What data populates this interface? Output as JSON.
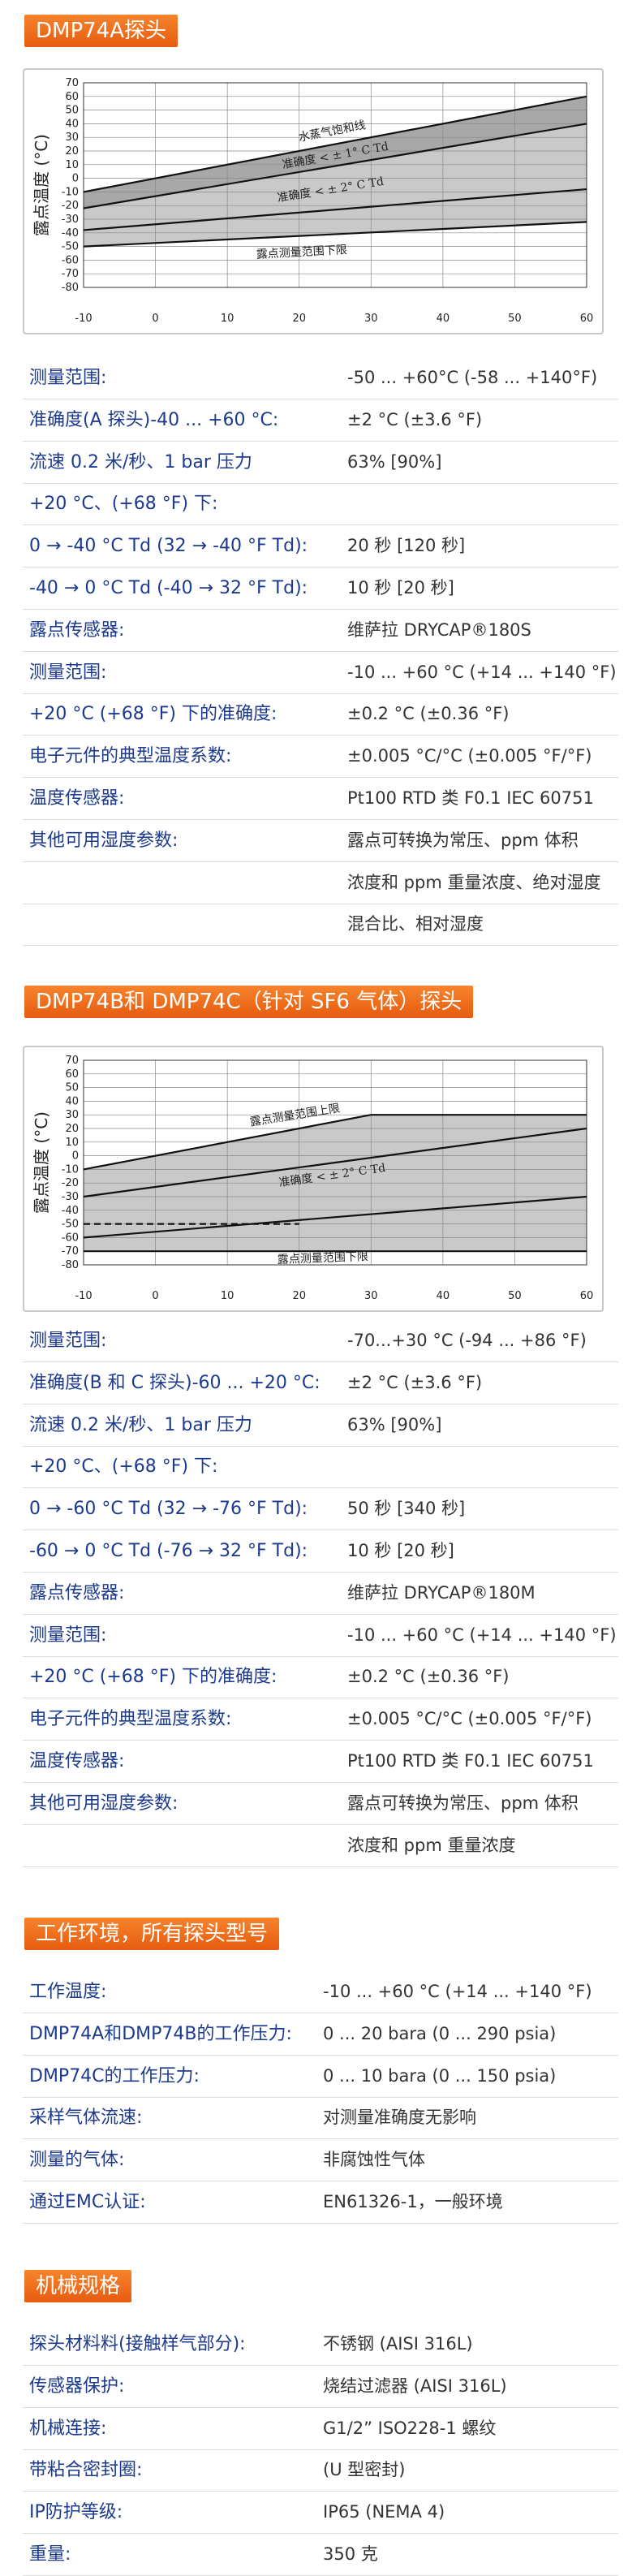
{
  "chart_data": [
    {
      "type": "line",
      "ylabel": "露点温度 (°C)",
      "xlim": [
        -10,
        60
      ],
      "ylim": [
        -80,
        70
      ],
      "xticks": [
        -10,
        0,
        10,
        20,
        30,
        40,
        50,
        60
      ],
      "yticks": [
        70,
        60,
        50,
        40,
        30,
        20,
        10,
        0,
        -10,
        -20,
        -30,
        -40,
        -50,
        -60,
        -70,
        -80
      ],
      "grid": true,
      "series": [
        {
          "x": [
            -10,
            60
          ],
          "values": [
            -10,
            60
          ]
        },
        {
          "x": [
            -10,
            60
          ],
          "values": [
            -22,
            40
          ]
        },
        {
          "x": [
            -10,
            60
          ],
          "values": [
            -38,
            -8
          ]
        },
        {
          "x": [
            -10,
            60
          ],
          "values": [
            -50,
            -32
          ]
        }
      ],
      "annotations": [
        "水蒸气饱和线",
        "准确度 < ± 1° C Td",
        "准确度 < ± 2° C Td",
        "露点测量范围下限"
      ]
    },
    {
      "type": "line",
      "ylabel": "露点温度 (°C)",
      "xlim": [
        -10,
        60
      ],
      "ylim": [
        -80,
        70
      ],
      "xticks": [
        -10,
        0,
        10,
        20,
        30,
        40,
        50,
        60
      ],
      "yticks": [
        70,
        60,
        50,
        40,
        30,
        20,
        10,
        0,
        -10,
        -20,
        -30,
        -40,
        -50,
        -60,
        -70,
        -80
      ],
      "grid": true,
      "series": [
        {
          "x": [
            -10,
            30,
            60
          ],
          "values": [
            -10,
            30,
            30
          ]
        },
        {
          "x": [
            -10,
            60
          ],
          "values": [
            -30,
            20
          ]
        },
        {
          "x": [
            -10,
            20
          ],
          "values": [
            -50,
            -50
          ],
          "dashed": true
        },
        {
          "x": [
            -10,
            60
          ],
          "values": [
            -60,
            -30
          ]
        },
        {
          "x": [
            -10,
            60
          ],
          "values": [
            -70,
            -70
          ]
        }
      ],
      "annotations": [
        "露点测量范围上限",
        "准确度 < ± 2° C Td",
        "露点测量范围下限"
      ]
    }
  ],
  "sections": [
    {
      "title": "DMP74A探头",
      "rows": [
        {
          "label": "测量范围:",
          "value": "-50 ... +60°C (-58 ... +140°F)"
        },
        {
          "label": "准确度(A 探头)-40 ... +60 °C:",
          "value": "±2 °C (±3.6 °F)"
        },
        {
          "label": "流速 0.2 米/秒、1 bar 压力",
          "value": "63% [90%]"
        },
        {
          "label": "+20 °C、(+68 °F) 下:"
        },
        {
          "label": "0 → -40 °C Td (32 → -40 °F Td):",
          "value": "20 秒 [120 秒]"
        },
        {
          "label": "-40 → 0 °C Td (-40 → 32 °F Td):",
          "value": "10 秒 [20 秒]"
        },
        {
          "label": "露点传感器:",
          "value": "维萨拉 DRYCAP®180S"
        },
        {
          "label": "测量范围:",
          "value": "-10 ... +60 °C (+14 ... +140 °F)"
        },
        {
          "label": "+20 °C (+68 °F) 下的准确度:",
          "value": "±0.2 °C (±0.36 °F)"
        },
        {
          "label": "电子元件的典型温度系数:",
          "value": "±0.005 °C/°C (±0.005 °F/°F)"
        },
        {
          "label": "温度传感器:",
          "value": "Pt100 RTD 类 F0.1 IEC 60751"
        },
        {
          "label": "其他可用湿度参数:",
          "value": "露点可转换为常压、ppm 体积"
        },
        {
          "value": "浓度和 ppm 重量浓度、绝对湿度"
        },
        {
          "value": "混合比、相对湿度"
        }
      ]
    },
    {
      "title": "DMP74B和 DMP74C（针对 SF6 气体）探头",
      "rows": [
        {
          "label": "测量范围:",
          "value": "-70...+30 °C (-94 ... +86 °F)"
        },
        {
          "label": "准确度(B 和 C 探头)-60 ... +20 °C:",
          "value": "±2 °C (±3.6 °F)"
        },
        {
          "label": "流速 0.2 米/秒、1 bar 压力",
          "value": "63% [90%]"
        },
        {
          "label": "+20 °C、(+68 °F) 下:"
        },
        {
          "label": "0 → -60 °C Td (32 → -76 °F Td):",
          "value": "50 秒 [340 秒]"
        },
        {
          "label": "-60 → 0 °C Td (-76 → 32 °F Td):",
          "value": "10 秒 [20 秒]"
        },
        {
          "label": "露点传感器:",
          "value": "维萨拉 DRYCAP®180M"
        },
        {
          "label": "测量范围:",
          "value": "-10 ... +60 °C (+14 ... +140 °F)"
        },
        {
          "label": "+20 °C (+68 °F) 下的准确度:",
          "value": "±0.2 °C (±0.36 °F)"
        },
        {
          "label": "电子元件的典型温度系数:",
          "value": "±0.005 °C/°C (±0.005 °F/°F)"
        },
        {
          "label": "温度传感器:",
          "value": "Pt100 RTD 类 F0.1 IEC 60751"
        },
        {
          "label": "其他可用湿度参数:",
          "value": "露点可转换为常压、ppm 体积"
        },
        {
          "value": "浓度和 ppm 重量浓度"
        }
      ]
    },
    {
      "title": "工作环境，所有探头型号",
      "rows": [
        {
          "label": "工作温度:",
          "value": "-10 ... +60 °C (+14 ... +140 °F)"
        },
        {
          "label": "DMP74A和DMP74B的工作压力:",
          "value": "0 ... 20 bara (0 ... 290 psia)"
        },
        {
          "label": "DMP74C的工作压力:",
          "value": "0 ... 10 bara (0 ... 150 psia)"
        },
        {
          "label": "采样气体流速:",
          "value": "对测量准确度无影响"
        },
        {
          "label": "测量的气体:",
          "value": "非腐蚀性气体"
        },
        {
          "label": "通过EMC认证:",
          "value": "EN61326-1，一般环境"
        }
      ]
    },
    {
      "title": "机械规格",
      "rows": [
        {
          "label": "探头材料料(接触样气部分):",
          "value": "不锈钢 (AISI 316L)"
        },
        {
          "label": "传感器保护:",
          "value": "烧结过滤器 (AISI 316L)"
        },
        {
          "label": "机械连接:",
          "value": "G1/2” ISO228-1 螺纹"
        },
        {
          "label": "带粘合密封圈:",
          "value": "(U 型密封)"
        },
        {
          "label": "IP防护等级:",
          "value": "IP65 (NEMA 4)"
        },
        {
          "label": "重量:",
          "value": "350 克"
        }
      ]
    }
  ]
}
